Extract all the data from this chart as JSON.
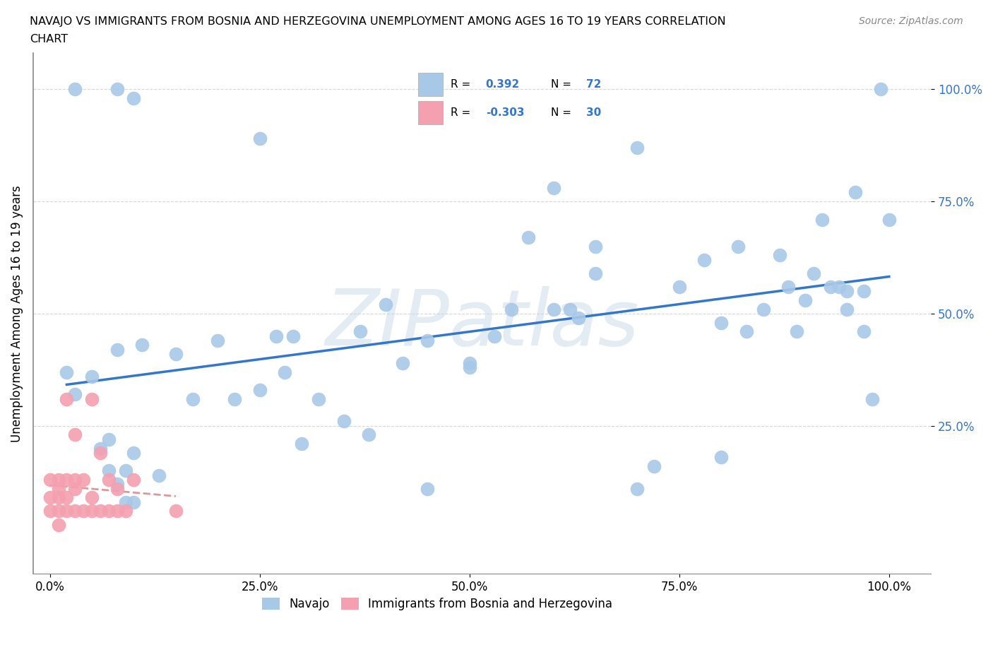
{
  "title_line1": "NAVAJO VS IMMIGRANTS FROM BOSNIA AND HERZEGOVINA UNEMPLOYMENT AMONG AGES 16 TO 19 YEARS CORRELATION",
  "title_line2": "CHART",
  "source": "Source: ZipAtlas.com",
  "ylabel": "Unemployment Among Ages 16 to 19 years",
  "xlim": [
    -0.02,
    1.05
  ],
  "ylim": [
    -0.08,
    1.08
  ],
  "xtick_labels": [
    "0.0%",
    "25.0%",
    "50.0%",
    "75.0%",
    "100.0%"
  ],
  "xtick_vals": [
    0.0,
    0.25,
    0.5,
    0.75,
    1.0
  ],
  "ytick_labels": [
    "25.0%",
    "50.0%",
    "75.0%",
    "100.0%"
  ],
  "ytick_vals": [
    0.25,
    0.5,
    0.75,
    1.0
  ],
  "watermark": "ZIPatlas",
  "navajo_color": "#a8c8e8",
  "bosnia_color": "#f4a0b0",
  "navajo_R": 0.392,
  "navajo_N": 72,
  "bosnia_R": -0.303,
  "bosnia_N": 30,
  "navajo_line_color": "#3377cc",
  "bosnia_line_color": "#dd9999",
  "navajo_x": [
    0.02,
    0.03,
    0.03,
    0.05,
    0.06,
    0.07,
    0.07,
    0.08,
    0.08,
    0.09,
    0.09,
    0.1,
    0.1,
    0.11,
    0.13,
    0.15,
    0.17,
    0.2,
    0.22,
    0.25,
    0.27,
    0.28,
    0.29,
    0.3,
    0.32,
    0.35,
    0.37,
    0.38,
    0.4,
    0.42,
    0.45,
    0.5,
    0.53,
    0.55,
    0.57,
    0.6,
    0.62,
    0.63,
    0.65,
    0.7,
    0.72,
    0.75,
    0.78,
    0.8,
    0.82,
    0.83,
    0.85,
    0.87,
    0.88,
    0.89,
    0.9,
    0.91,
    0.92,
    0.93,
    0.94,
    0.95,
    0.96,
    0.97,
    0.98,
    0.99,
    1.0,
    0.08,
    0.1,
    0.6,
    0.25,
    0.45,
    0.8,
    0.5,
    0.65,
    0.7,
    0.95,
    0.97
  ],
  "navajo_y": [
    0.37,
    0.32,
    1.0,
    0.36,
    0.2,
    0.22,
    0.15,
    0.42,
    0.12,
    0.15,
    0.08,
    0.19,
    0.08,
    0.43,
    0.14,
    0.41,
    0.31,
    0.44,
    0.31,
    0.33,
    0.45,
    0.37,
    0.45,
    0.21,
    0.31,
    0.26,
    0.46,
    0.23,
    0.52,
    0.39,
    0.44,
    0.39,
    0.45,
    0.51,
    0.67,
    0.51,
    0.51,
    0.49,
    0.65,
    0.11,
    0.16,
    0.56,
    0.62,
    0.48,
    0.65,
    0.46,
    0.51,
    0.63,
    0.56,
    0.46,
    0.53,
    0.59,
    0.71,
    0.56,
    0.56,
    0.51,
    0.77,
    0.46,
    0.31,
    1.0,
    0.71,
    1.0,
    0.98,
    0.78,
    0.89,
    0.11,
    0.18,
    0.38,
    0.59,
    0.87,
    0.55,
    0.55
  ],
  "bosnia_x": [
    0.0,
    0.0,
    0.0,
    0.01,
    0.01,
    0.01,
    0.01,
    0.01,
    0.02,
    0.02,
    0.02,
    0.02,
    0.03,
    0.03,
    0.03,
    0.03,
    0.04,
    0.04,
    0.05,
    0.05,
    0.05,
    0.06,
    0.06,
    0.07,
    0.07,
    0.08,
    0.08,
    0.09,
    0.1,
    0.15
  ],
  "bosnia_y": [
    0.13,
    0.09,
    0.06,
    0.13,
    0.11,
    0.09,
    0.06,
    0.03,
    0.31,
    0.13,
    0.09,
    0.06,
    0.23,
    0.13,
    0.11,
    0.06,
    0.13,
    0.06,
    0.31,
    0.06,
    0.09,
    0.19,
    0.06,
    0.13,
    0.06,
    0.11,
    0.06,
    0.06,
    0.13,
    0.06
  ]
}
